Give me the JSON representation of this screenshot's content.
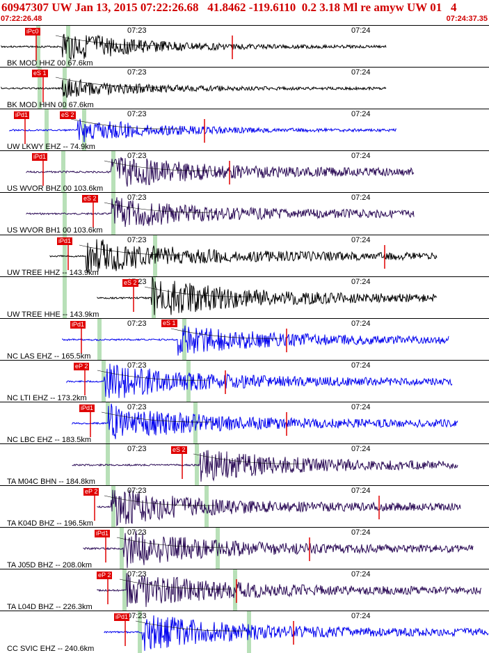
{
  "header": {
    "title": "60947307 UW Jan 13, 2015 07:22:26.68   41.8462 -119.6110  0.2 3.18 Ml re amyw UW 01   4",
    "start_time": "07:22:26.48",
    "end_time": "07:24:37.35"
  },
  "time_ticks": [
    "07:23",
    "07:24"
  ],
  "colors": {
    "black": "#000000",
    "blue": "#0000ee",
    "purple": "#2a0a55",
    "red": "#e00000",
    "green": "#b8e0b8"
  },
  "panels": [
    {
      "station": "BK MOD HHZ 00 67.6km",
      "pick": "iPc0",
      "color": "black"
    },
    {
      "station": "BK MOD HHN 00 67.6km",
      "pick": "eS 1",
      "color": "black"
    },
    {
      "station": "UW LKWY EHZ -- 74.9km",
      "pick": "iPd1",
      "pick2": "eS 2",
      "color": "blue"
    },
    {
      "station": "US WVOR BHZ 00 103.6km",
      "pick": "iPd1",
      "color": "purple"
    },
    {
      "station": "US WVOR BH1 00 103.6km",
      "pick": "eS 2",
      "color": "purple"
    },
    {
      "station": "UW TREE HHZ -- 143.9km",
      "pick": "iPd1",
      "color": "black"
    },
    {
      "station": "UW TREE HHE -- 143.9km",
      "pick": "eS 2",
      "color": "black"
    },
    {
      "station": "NC LAS EHZ -- 165.5km",
      "pick": "iPd1",
      "pick2": "eS 1",
      "color": "blue"
    },
    {
      "station": "NC LTI EHZ -- 173.2km",
      "pick": "eP 2",
      "color": "blue"
    },
    {
      "station": "NC LBC EHZ -- 183.5km",
      "pick": "iPd1",
      "color": "blue"
    },
    {
      "station": "TA M04C BHN -- 184.8km",
      "pick": "eS 2",
      "color": "purple"
    },
    {
      "station": "TA K04D BHZ -- 196.5km",
      "pick": "eP 2",
      "color": "purple"
    },
    {
      "station": "TA J05D BHZ -- 208.0km",
      "pick": "iPd1",
      "color": "purple"
    },
    {
      "station": "TA L04D BHZ -- 226.3km",
      "pick": "eP 2",
      "color": "purple"
    },
    {
      "station": "CC SVIC EHZ -- 240.6km",
      "pick": "iPd1",
      "color": "blue"
    }
  ]
}
